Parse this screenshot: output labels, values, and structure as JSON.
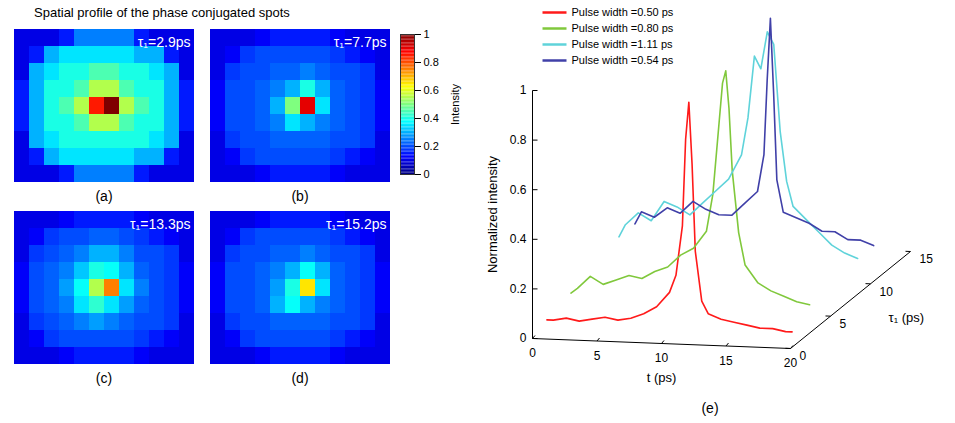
{
  "title": "Spatial profile of the phase conjugated spots",
  "chart_data": [
    {
      "type": "heatmap",
      "panel": "(a)",
      "annotation": "τ₁=2.9ps",
      "tick_labels": false,
      "cells": [
        [
          0.1,
          0.1,
          0.1,
          0.15,
          0.25,
          0.25,
          0.25,
          0.25,
          0.15,
          0.1,
          0.1,
          0.1
        ],
        [
          0.1,
          0.15,
          0.3,
          0.35,
          0.35,
          0.35,
          0.35,
          0.35,
          0.3,
          0.3,
          0.15,
          0.1
        ],
        [
          0.1,
          0.3,
          0.35,
          0.4,
          0.4,
          0.45,
          0.45,
          0.4,
          0.4,
          0.35,
          0.3,
          0.1
        ],
        [
          0.15,
          0.3,
          0.4,
          0.4,
          0.45,
          0.55,
          0.55,
          0.45,
          0.4,
          0.4,
          0.3,
          0.15
        ],
        [
          0.15,
          0.3,
          0.4,
          0.45,
          0.55,
          0.85,
          1.0,
          0.55,
          0.45,
          0.4,
          0.3,
          0.15
        ],
        [
          0.15,
          0.3,
          0.4,
          0.4,
          0.45,
          0.55,
          0.55,
          0.45,
          0.4,
          0.4,
          0.3,
          0.15
        ],
        [
          0.1,
          0.3,
          0.35,
          0.4,
          0.4,
          0.4,
          0.4,
          0.4,
          0.4,
          0.35,
          0.3,
          0.1
        ],
        [
          0.1,
          0.15,
          0.3,
          0.35,
          0.35,
          0.35,
          0.35,
          0.35,
          0.3,
          0.3,
          0.15,
          0.1
        ],
        [
          0.1,
          0.1,
          0.1,
          0.15,
          0.25,
          0.25,
          0.25,
          0.25,
          0.15,
          0.1,
          0.1,
          0.1
        ]
      ]
    },
    {
      "type": "heatmap",
      "panel": "(b)",
      "annotation": "τ₁=7.7ps",
      "tick_labels": false,
      "colorbar": {
        "label": "Intensity",
        "range": [
          0,
          1
        ],
        "ticks": [
          0,
          0.2,
          0.4,
          0.6,
          0.8,
          1
        ]
      },
      "cells": [
        [
          0.1,
          0.1,
          0.1,
          0.12,
          0.15,
          0.15,
          0.15,
          0.15,
          0.12,
          0.1,
          0.1,
          0.1
        ],
        [
          0.1,
          0.12,
          0.18,
          0.2,
          0.2,
          0.2,
          0.2,
          0.2,
          0.18,
          0.15,
          0.12,
          0.1
        ],
        [
          0.1,
          0.18,
          0.2,
          0.2,
          0.22,
          0.22,
          0.25,
          0.22,
          0.2,
          0.2,
          0.18,
          0.1
        ],
        [
          0.12,
          0.2,
          0.2,
          0.22,
          0.25,
          0.3,
          0.4,
          0.3,
          0.22,
          0.2,
          0.18,
          0.12
        ],
        [
          0.12,
          0.2,
          0.2,
          0.22,
          0.3,
          0.5,
          0.9,
          0.35,
          0.22,
          0.2,
          0.18,
          0.12
        ],
        [
          0.12,
          0.2,
          0.2,
          0.22,
          0.25,
          0.35,
          0.3,
          0.25,
          0.22,
          0.2,
          0.18,
          0.12
        ],
        [
          0.1,
          0.18,
          0.2,
          0.2,
          0.22,
          0.22,
          0.22,
          0.22,
          0.2,
          0.2,
          0.18,
          0.1
        ],
        [
          0.1,
          0.12,
          0.18,
          0.2,
          0.2,
          0.2,
          0.2,
          0.2,
          0.18,
          0.15,
          0.12,
          0.1
        ],
        [
          0.1,
          0.1,
          0.1,
          0.12,
          0.15,
          0.15,
          0.15,
          0.15,
          0.12,
          0.1,
          0.1,
          0.1
        ]
      ]
    },
    {
      "type": "heatmap",
      "panel": "(c)",
      "annotation": "τ₁=13.3ps",
      "tick_labels": false,
      "cells": [
        [
          0.1,
          0.1,
          0.1,
          0.12,
          0.15,
          0.15,
          0.15,
          0.15,
          0.12,
          0.1,
          0.1,
          0.1
        ],
        [
          0.1,
          0.12,
          0.18,
          0.2,
          0.2,
          0.22,
          0.22,
          0.2,
          0.18,
          0.15,
          0.12,
          0.1
        ],
        [
          0.1,
          0.18,
          0.2,
          0.22,
          0.25,
          0.3,
          0.3,
          0.25,
          0.2,
          0.2,
          0.18,
          0.1
        ],
        [
          0.12,
          0.2,
          0.22,
          0.25,
          0.32,
          0.4,
          0.38,
          0.3,
          0.22,
          0.2,
          0.18,
          0.12
        ],
        [
          0.12,
          0.2,
          0.22,
          0.28,
          0.38,
          0.55,
          0.75,
          0.35,
          0.25,
          0.2,
          0.18,
          0.12
        ],
        [
          0.12,
          0.2,
          0.22,
          0.25,
          0.35,
          0.42,
          0.35,
          0.28,
          0.22,
          0.2,
          0.18,
          0.12
        ],
        [
          0.1,
          0.18,
          0.2,
          0.22,
          0.25,
          0.28,
          0.25,
          0.22,
          0.2,
          0.2,
          0.18,
          0.1
        ],
        [
          0.1,
          0.12,
          0.18,
          0.2,
          0.2,
          0.2,
          0.2,
          0.2,
          0.18,
          0.15,
          0.12,
          0.1
        ],
        [
          0.1,
          0.1,
          0.1,
          0.12,
          0.15,
          0.15,
          0.15,
          0.15,
          0.12,
          0.1,
          0.1,
          0.1
        ]
      ]
    },
    {
      "type": "heatmap",
      "panel": "(d)",
      "annotation": "τ₁=15.2ps",
      "tick_labels": false,
      "cells": [
        [
          0.1,
          0.1,
          0.1,
          0.12,
          0.15,
          0.15,
          0.15,
          0.15,
          0.12,
          0.1,
          0.1,
          0.1
        ],
        [
          0.1,
          0.12,
          0.18,
          0.2,
          0.2,
          0.2,
          0.2,
          0.2,
          0.18,
          0.15,
          0.12,
          0.1
        ],
        [
          0.1,
          0.18,
          0.2,
          0.2,
          0.22,
          0.22,
          0.25,
          0.22,
          0.2,
          0.2,
          0.18,
          0.1
        ],
        [
          0.12,
          0.2,
          0.2,
          0.22,
          0.25,
          0.3,
          0.38,
          0.3,
          0.22,
          0.2,
          0.18,
          0.12
        ],
        [
          0.12,
          0.2,
          0.2,
          0.22,
          0.28,
          0.4,
          0.65,
          0.35,
          0.22,
          0.2,
          0.18,
          0.12
        ],
        [
          0.12,
          0.2,
          0.2,
          0.22,
          0.3,
          0.38,
          0.3,
          0.25,
          0.22,
          0.2,
          0.18,
          0.12
        ],
        [
          0.1,
          0.18,
          0.2,
          0.2,
          0.22,
          0.22,
          0.22,
          0.22,
          0.2,
          0.2,
          0.18,
          0.1
        ],
        [
          0.1,
          0.12,
          0.18,
          0.2,
          0.2,
          0.2,
          0.2,
          0.2,
          0.18,
          0.15,
          0.12,
          0.1
        ],
        [
          0.1,
          0.1,
          0.1,
          0.12,
          0.15,
          0.15,
          0.15,
          0.15,
          0.12,
          0.1,
          0.1,
          0.1
        ]
      ]
    },
    {
      "type": "line3d",
      "panel": "(e)",
      "xlabel": "t (ps)",
      "ylabel": "τ₁ (ps)",
      "zlabel": "Normalized intensity",
      "xlim": [
        0,
        20
      ],
      "xticks": [
        0,
        5,
        10,
        15,
        20
      ],
      "ylim": [
        0,
        15
      ],
      "yticks": [
        0,
        5,
        10,
        15
      ],
      "zlim": [
        0,
        1
      ],
      "zticks": [
        0,
        0.2,
        0.4,
        0.6,
        0.8,
        1
      ],
      "legend": "top-left",
      "series": [
        {
          "name": "Pulse width =0.50 ps",
          "color": "#ff1a1a",
          "y": 1,
          "x": [
            0.5,
            1,
            2,
            3,
            4,
            5,
            6,
            7,
            8,
            9,
            10,
            10.5,
            11,
            11.25,
            11.5,
            11.75,
            12,
            12.5,
            13,
            14,
            15,
            16,
            17,
            18,
            19,
            19.5
          ],
          "values": [
            0.05,
            0.05,
            0.06,
            0.05,
            0.06,
            0.07,
            0.06,
            0.07,
            0.09,
            0.12,
            0.18,
            0.25,
            0.45,
            0.8,
            0.95,
            0.7,
            0.35,
            0.15,
            0.1,
            0.08,
            0.07,
            0.06,
            0.05,
            0.05,
            0.04,
            0.04
          ]
        },
        {
          "name": "Pulse width =0.80 ps",
          "color": "#80c83c",
          "y": 4,
          "x": [
            0.5,
            1,
            2,
            3,
            4,
            5,
            6,
            7,
            8,
            9,
            10,
            11,
            11.5,
            12,
            12.25,
            12.5,
            12.75,
            13,
            13.5,
            14,
            15,
            16,
            17,
            18,
            19
          ],
          "values": [
            0.08,
            0.1,
            0.15,
            0.12,
            0.14,
            0.16,
            0.15,
            0.18,
            0.2,
            0.25,
            0.28,
            0.35,
            0.5,
            0.8,
            0.95,
            1.0,
            0.85,
            0.6,
            0.35,
            0.22,
            0.15,
            0.12,
            0.1,
            0.08,
            0.07
          ]
        },
        {
          "name": "Pulse width =1.11 ps",
          "color": "#5fd3da",
          "y": 10,
          "x": [
            0.5,
            1,
            2,
            3,
            4,
            5,
            6,
            7,
            8,
            9,
            10,
            10.5,
            11,
            11.5,
            12,
            12.5,
            13,
            13.5,
            14,
            15,
            16,
            17,
            18,
            19
          ],
          "values": [
            0.15,
            0.2,
            0.25,
            0.22,
            0.3,
            0.28,
            0.25,
            0.3,
            0.35,
            0.4,
            0.5,
            0.65,
            0.9,
            0.85,
            1.0,
            0.95,
            0.6,
            0.4,
            0.3,
            0.25,
            0.2,
            0.15,
            0.12,
            0.1
          ]
        },
        {
          "name": "Pulse width =0.54 ps",
          "color": "#4040a8",
          "y": 12,
          "x": [
            0.5,
            1,
            2,
            3,
            4,
            5,
            6,
            7,
            8,
            9,
            10,
            10.5,
            10.75,
            11,
            11.25,
            11.5,
            12,
            13,
            14,
            15,
            16,
            17,
            18,
            19
          ],
          "values": [
            0.15,
            0.2,
            0.18,
            0.22,
            0.2,
            0.25,
            0.22,
            0.2,
            0.2,
            0.25,
            0.3,
            0.45,
            0.75,
            1.0,
            0.7,
            0.35,
            0.22,
            0.2,
            0.18,
            0.15,
            0.15,
            0.12,
            0.12,
            0.1
          ]
        }
      ]
    }
  ]
}
